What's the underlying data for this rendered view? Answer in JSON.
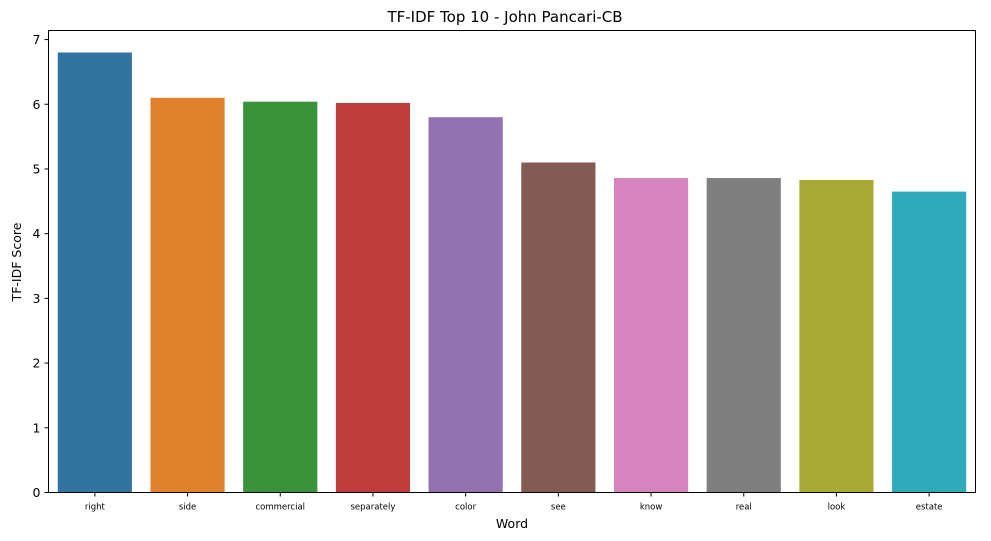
{
  "chart_data": {
    "type": "bar",
    "title": "TF-IDF Top 10 - John Pancari-CB",
    "xlabel": "Word",
    "ylabel": "TF-IDF Score",
    "categories": [
      "right",
      "side",
      "commercial",
      "separately",
      "color",
      "see",
      "know",
      "real",
      "look",
      "estate"
    ],
    "values": [
      6.8,
      6.1,
      6.04,
      6.02,
      5.8,
      5.1,
      4.86,
      4.86,
      4.83,
      4.65
    ],
    "colors": [
      "#3274a1",
      "#e1812c",
      "#3a923a",
      "#c03d3e",
      "#9372b2",
      "#845b53",
      "#d684bd",
      "#7f7f7f",
      "#a9aa35",
      "#2eaaba"
    ],
    "ylim": [
      0,
      7.14
    ],
    "yticks": [
      0,
      1,
      2,
      3,
      4,
      5,
      6,
      7
    ],
    "grid": false,
    "legend": "none"
  }
}
